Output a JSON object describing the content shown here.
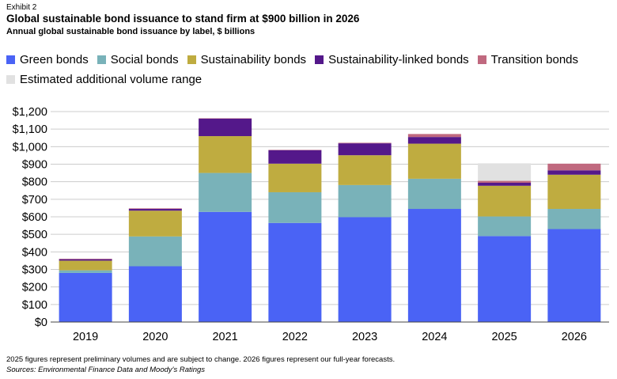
{
  "exhibit": "Exhibit 2",
  "title": "Global sustainable bond issuance to stand firm at $900 billion in 2026",
  "subtitle": "Annual global sustainable bond issuance by label, $ billions",
  "footnote": "2025 figures represent preliminary volumes and are subject to change. 2026 figures represent our full-year forecasts.",
  "sources": "Sources: Environmental Finance Data and Moody's Ratings",
  "colors": {
    "green": "#4a63f5",
    "social": "#79b2b9",
    "sustainability": "#bfac40",
    "linked": "#54188a",
    "transition": "#c0697f",
    "estimated": "#e1e1e1",
    "grid": "#cccccc",
    "axis": "#444444"
  },
  "chart_data": {
    "type": "bar",
    "stacked": true,
    "title": "Global sustainable bond issuance to stand firm at $900 billion in 2026",
    "subtitle": "Annual global sustainable bond issuance by label, $ billions",
    "xlabel": "",
    "ylabel": "",
    "ylim": [
      0,
      1200
    ],
    "yticks": [
      "$0",
      "$100",
      "$200",
      "$300",
      "$400",
      "$500",
      "$600",
      "$700",
      "$800",
      "$900",
      "$1,000",
      "$1,100",
      "$1,200"
    ],
    "grid": true,
    "legend_position": "top",
    "categories": [
      "2019",
      "2020",
      "2021",
      "2022",
      "2023",
      "2024",
      "2025",
      "2026"
    ],
    "series": [
      {
        "name": "Green bonds",
        "color_key": "green",
        "values": [
          280,
          318,
          628,
          565,
          598,
          645,
          490,
          530
        ]
      },
      {
        "name": "Social bonds",
        "color_key": "social",
        "values": [
          15,
          170,
          222,
          175,
          183,
          172,
          112,
          115
        ]
      },
      {
        "name": "Sustainability bonds",
        "color_key": "sustainability",
        "values": [
          55,
          147,
          210,
          163,
          170,
          200,
          175,
          195
        ]
      },
      {
        "name": "Sustainability-linked bonds",
        "color_key": "linked",
        "values": [
          8,
          10,
          100,
          77,
          68,
          38,
          17,
          25
        ]
      },
      {
        "name": "Transition bonds",
        "color_key": "transition",
        "values": [
          3,
          3,
          2,
          2,
          3,
          17,
          11,
          38
        ]
      },
      {
        "name": "Estimated additional volume range",
        "color_key": "estimated",
        "values": [
          0,
          0,
          0,
          0,
          0,
          0,
          100,
          0
        ]
      }
    ]
  }
}
